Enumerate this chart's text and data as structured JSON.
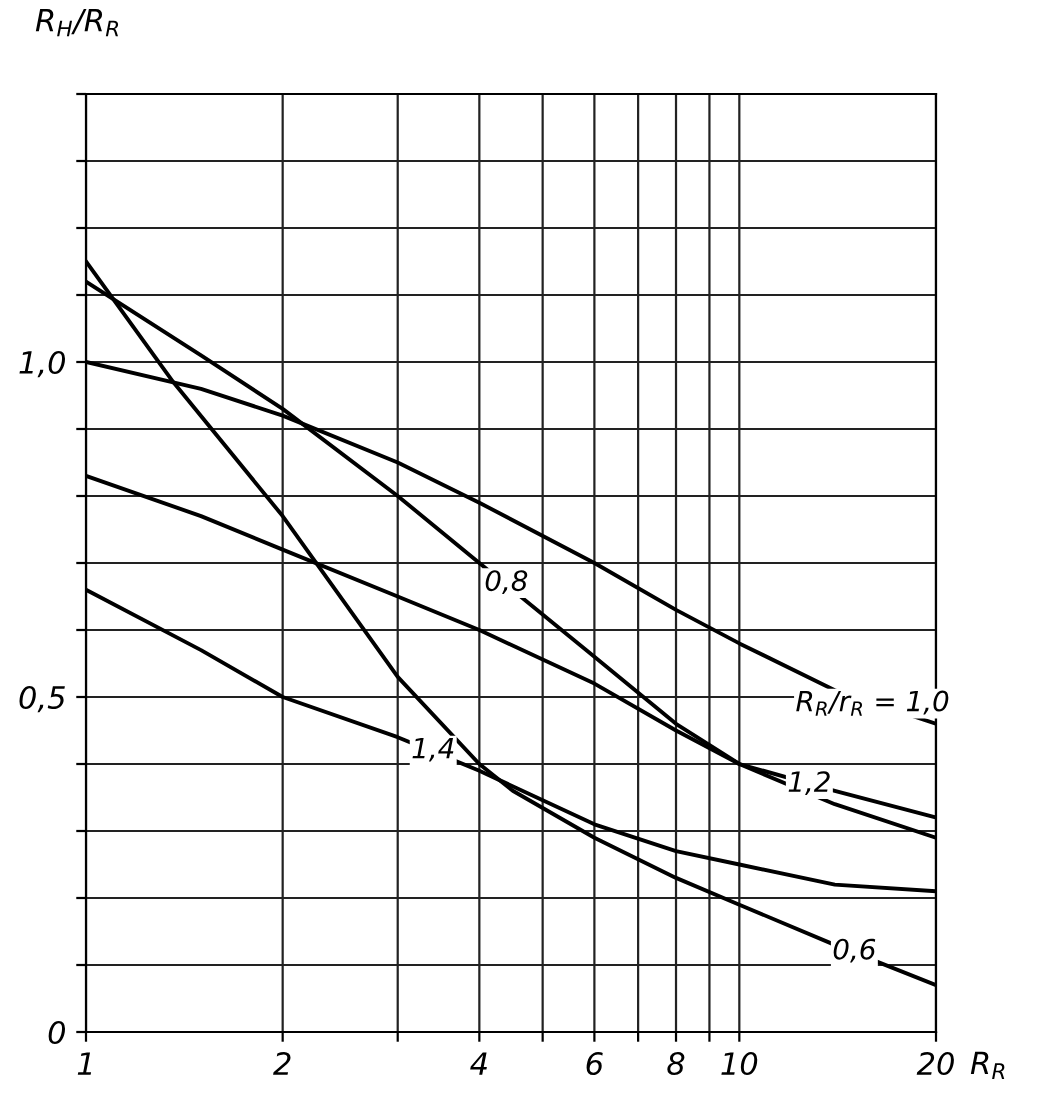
{
  "chart_data": {
    "type": "line",
    "xlabel": "R$_{R}$",
    "ylabel": "R$_{H}$/R$_{R}$",
    "log": "x",
    "grid": true,
    "marker": "none",
    "line_style": "solid",
    "xlim": [
      1,
      20
    ],
    "ylim": [
      0,
      1.4
    ],
    "xticks": [
      1,
      2,
      {
        "value": 3,
        "label": null
      },
      4,
      {
        "value": 5,
        "label": null
      },
      6,
      {
        "value": 7,
        "label": null
      },
      8,
      {
        "value": 9,
        "label": null
      },
      10,
      20
    ],
    "yticks": [
      {
        "value": 0,
        "label": "0"
      },
      {
        "value": 0.1,
        "label": null
      },
      {
        "value": 0.2,
        "label": null
      },
      {
        "value": 0.3,
        "label": null
      },
      {
        "value": 0.4,
        "label": null
      },
      {
        "value": 0.5,
        "label": "0,5"
      },
      {
        "value": 0.6,
        "label": null
      },
      {
        "value": 0.7,
        "label": null
      },
      {
        "value": 0.8,
        "label": null
      },
      {
        "value": 0.9,
        "label": null
      },
      {
        "value": 1.0,
        "label": "1,0"
      },
      {
        "value": 1.1,
        "label": null
      },
      {
        "value": 1.2,
        "label": null
      },
      {
        "value": 1.3,
        "label": null
      },
      {
        "value": 1.4,
        "label": null
      }
    ],
    "series": [
      {
        "color": "#000000",
        "x": [
          1,
          1.5,
          2,
          3,
          4,
          6,
          8,
          10,
          14,
          20
        ],
        "values": [
          1.0,
          0.96,
          0.92,
          0.85,
          0.79,
          0.7,
          0.63,
          0.58,
          0.51,
          0.46
        ]
      },
      {
        "color": "#000000",
        "x": [
          1,
          1.5,
          2,
          3,
          4,
          6,
          8,
          10,
          14,
          20
        ],
        "values": [
          1.12,
          1.01,
          0.93,
          0.8,
          0.7,
          0.56,
          0.46,
          0.4,
          0.34,
          0.29
        ]
      },
      {
        "color": "#000000",
        "x": [
          1,
          1.36,
          2,
          3,
          4,
          4.5,
          6,
          8,
          10,
          14,
          20
        ],
        "values": [
          1.15,
          0.97,
          0.77,
          0.53,
          0.4,
          0.36,
          0.29,
          0.23,
          0.19,
          0.13,
          0.07
        ]
      },
      {
        "color": "#000000",
        "x": [
          1,
          1.5,
          2,
          3,
          4,
          6,
          8,
          10,
          14,
          20
        ],
        "values": [
          0.83,
          0.77,
          0.72,
          0.65,
          0.6,
          0.52,
          0.45,
          0.4,
          0.36,
          0.32
        ]
      },
      {
        "color": "#000000",
        "x": [
          1,
          1.5,
          2,
          3,
          4,
          6,
          8,
          10,
          14,
          20
        ],
        "values": [
          0.66,
          0.57,
          0.5,
          0.44,
          0.39,
          0.31,
          0.27,
          0.25,
          0.22,
          0.21
        ]
      }
    ],
    "annotations": [
      {
        "text": "R$_{R}$/r$_{R}$ = 1,0",
        "x": 16,
        "y": 0.49
      },
      {
        "text": "0,8",
        "x": 4.4,
        "y": 0.67
      },
      {
        "text": "1,2",
        "x": 12.8,
        "y": 0.37
      },
      {
        "text": "1,4",
        "x": 3.4,
        "y": 0.42
      },
      {
        "text": "0,6",
        "x": 15,
        "y": 0.12
      }
    ]
  }
}
